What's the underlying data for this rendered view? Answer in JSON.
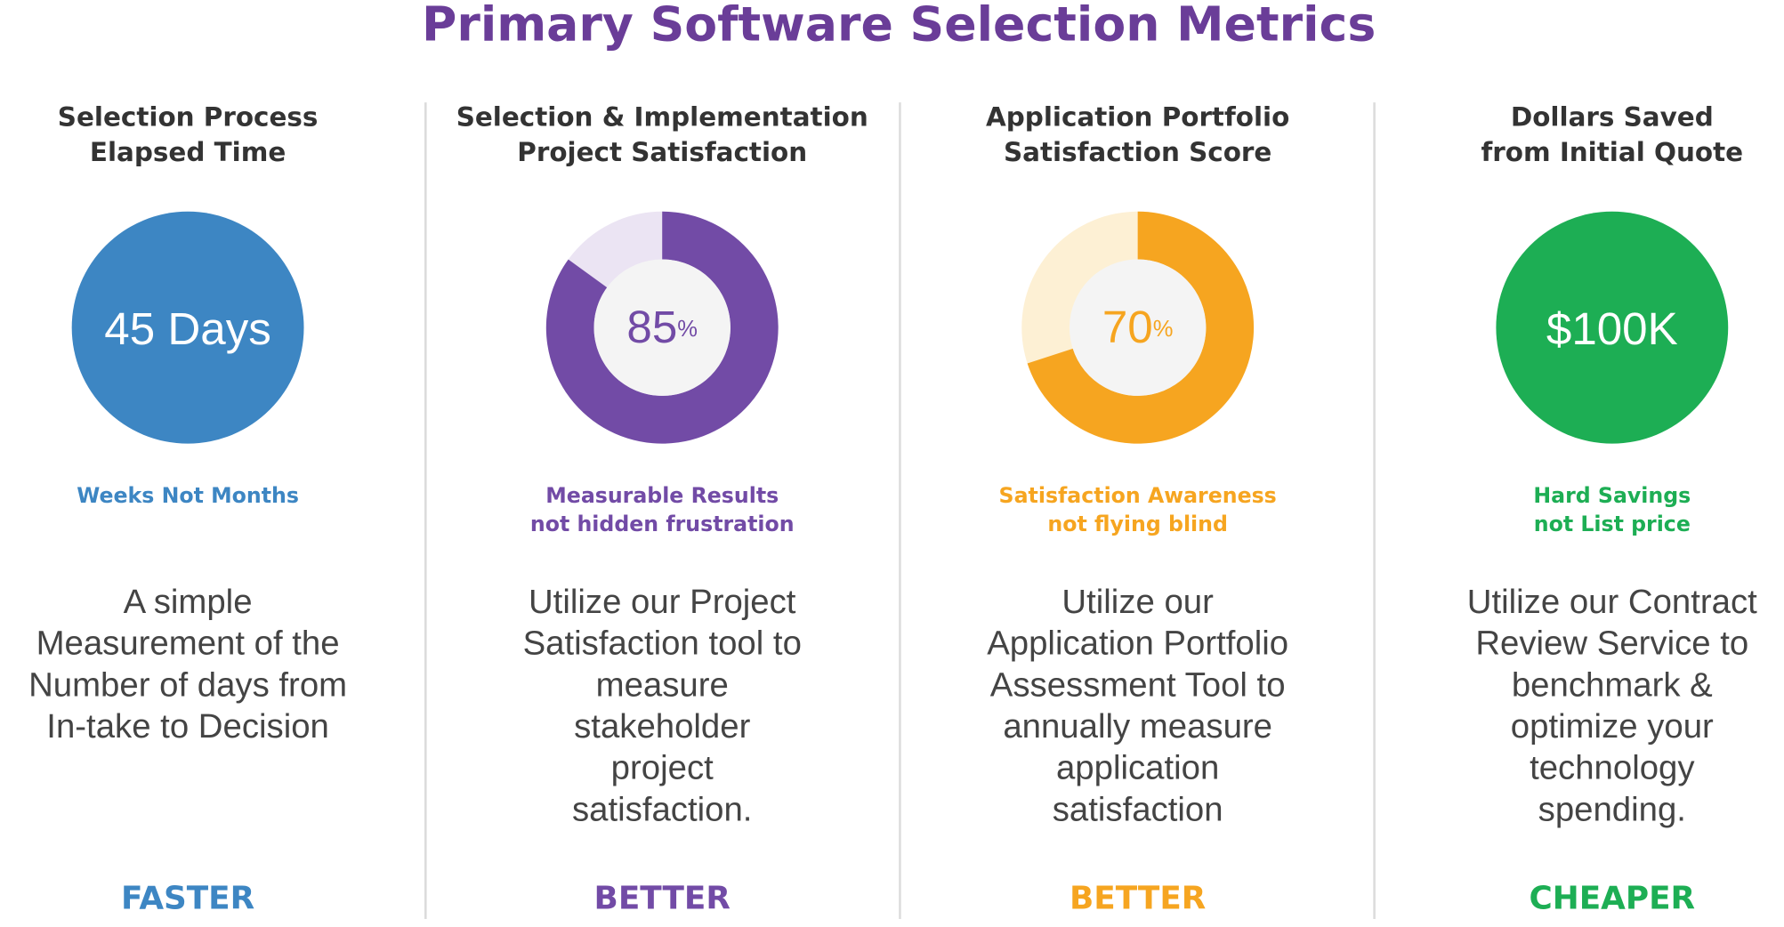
{
  "title": "Primary Software Selection Metrics",
  "columns": [
    {
      "heading": [
        "Selection Process",
        "Elapsed Time"
      ],
      "metric": {
        "text": "45 Days"
      },
      "color": "#3d86c3",
      "tagline": [
        "Weeks Not Months"
      ],
      "description": [
        "A simple",
        "Measurement of the",
        "Number of days from",
        "In-take to Decision"
      ],
      "footer": "FASTER"
    },
    {
      "heading": [
        "Selection & Implementation",
        "Project Satisfaction"
      ],
      "metric": {
        "value": 85,
        "unit": "%"
      },
      "color": "#724ba6",
      "tint": "#ebe4f3",
      "tagline": [
        "Measurable Results",
        "not hidden frustration"
      ],
      "description": [
        "Utilize our Project",
        "Satisfaction tool to",
        "measure",
        "stakeholder",
        "project",
        "satisfaction."
      ],
      "footer": "BETTER"
    },
    {
      "heading": [
        "Application Portfolio",
        "Satisfaction Score"
      ],
      "metric": {
        "value": 70,
        "unit": "%"
      },
      "color": "#f6a520",
      "tint": "#fdf0d4",
      "tagline": [
        "Satisfaction Awareness",
        "not flying blind"
      ],
      "description": [
        "Utilize our",
        "Application Portfolio",
        "Assessment Tool to",
        "annually measure",
        "application",
        "satisfaction"
      ],
      "footer": "BETTER"
    },
    {
      "heading": [
        "Dollars Saved",
        "from Initial Quote"
      ],
      "metric": {
        "text": "$100K"
      },
      "color": "#1dae54",
      "tagline": [
        "Hard Savings",
        "not List price"
      ],
      "description": [
        "Utilize our Contract",
        "Review Service to",
        "benchmark &",
        "optimize your",
        "technology",
        "spending."
      ],
      "footer": "CHEAPER"
    }
  ]
}
